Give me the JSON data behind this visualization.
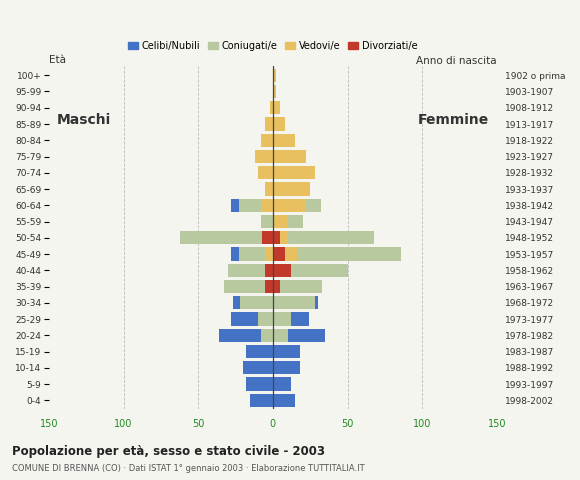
{
  "age_groups": [
    "0-4",
    "5-9",
    "10-14",
    "15-19",
    "20-24",
    "25-29",
    "30-34",
    "35-39",
    "40-44",
    "45-49",
    "50-54",
    "55-59",
    "60-64",
    "65-69",
    "70-74",
    "75-79",
    "80-84",
    "85-89",
    "90-94",
    "95-99",
    "100+"
  ],
  "anno_nascita": [
    "1998-2002",
    "1993-1997",
    "1988-1992",
    "1983-1987",
    "1978-1982",
    "1973-1977",
    "1968-1972",
    "1963-1967",
    "1958-1962",
    "1953-1957",
    "1948-1952",
    "1943-1947",
    "1938-1942",
    "1933-1937",
    "1928-1932",
    "1923-1927",
    "1918-1922",
    "1913-1917",
    "1908-1912",
    "1903-1907",
    "1902 o prima"
  ],
  "males": {
    "celibi": [
      15,
      18,
      20,
      18,
      28,
      18,
      5,
      0,
      0,
      5,
      0,
      0,
      5,
      0,
      0,
      0,
      0,
      0,
      0,
      0,
      0
    ],
    "coniugati": [
      0,
      0,
      0,
      0,
      8,
      10,
      22,
      28,
      25,
      18,
      55,
      8,
      15,
      0,
      0,
      0,
      0,
      0,
      0,
      0,
      0
    ],
    "vedovi": [
      0,
      0,
      0,
      0,
      0,
      0,
      0,
      0,
      0,
      5,
      0,
      0,
      8,
      5,
      10,
      12,
      8,
      5,
      2,
      0,
      0
    ],
    "divorziati": [
      0,
      0,
      0,
      0,
      0,
      0,
      0,
      5,
      5,
      0,
      7,
      0,
      0,
      0,
      0,
      0,
      0,
      0,
      0,
      0,
      0
    ]
  },
  "females": {
    "nubili": [
      15,
      12,
      18,
      18,
      25,
      12,
      2,
      0,
      0,
      0,
      0,
      0,
      0,
      0,
      0,
      0,
      0,
      0,
      0,
      0,
      0
    ],
    "coniugate": [
      0,
      0,
      0,
      0,
      10,
      12,
      28,
      28,
      38,
      70,
      58,
      10,
      10,
      0,
      0,
      0,
      0,
      0,
      0,
      0,
      0
    ],
    "vedove": [
      0,
      0,
      0,
      0,
      0,
      0,
      0,
      0,
      0,
      8,
      5,
      10,
      22,
      25,
      28,
      22,
      15,
      8,
      5,
      2,
      2
    ],
    "divorziate": [
      0,
      0,
      0,
      0,
      0,
      0,
      0,
      5,
      12,
      8,
      5,
      0,
      0,
      0,
      0,
      0,
      0,
      0,
      0,
      0,
      0
    ]
  },
  "colors": {
    "celibi": "#4472c4",
    "coniugati": "#b8c9a0",
    "vedovi": "#e8c060",
    "divorziati": "#c0392b"
  },
  "xlim": 150,
  "title": "Popolazione per età, sesso e stato civile - 2003",
  "subtitle": "COMUNE DI BRENNA (CO) · Dati ISTAT 1° gennaio 2003 · Elaborazione TUTTITALIA.IT",
  "label_maschi": "Maschi",
  "label_femmine": "Femmine",
  "label_eta": "Età",
  "label_anno": "Anno di nascita",
  "bg_color": "#f5f5f0",
  "legend_labels": [
    "Celibi/Nubili",
    "Coniugati/e",
    "Vedovi/e",
    "Divorziati/e"
  ],
  "grid_color": "#bbbbbb",
  "center_line_color": "#444444",
  "tick_color": "#228822",
  "label_color": "#333333"
}
